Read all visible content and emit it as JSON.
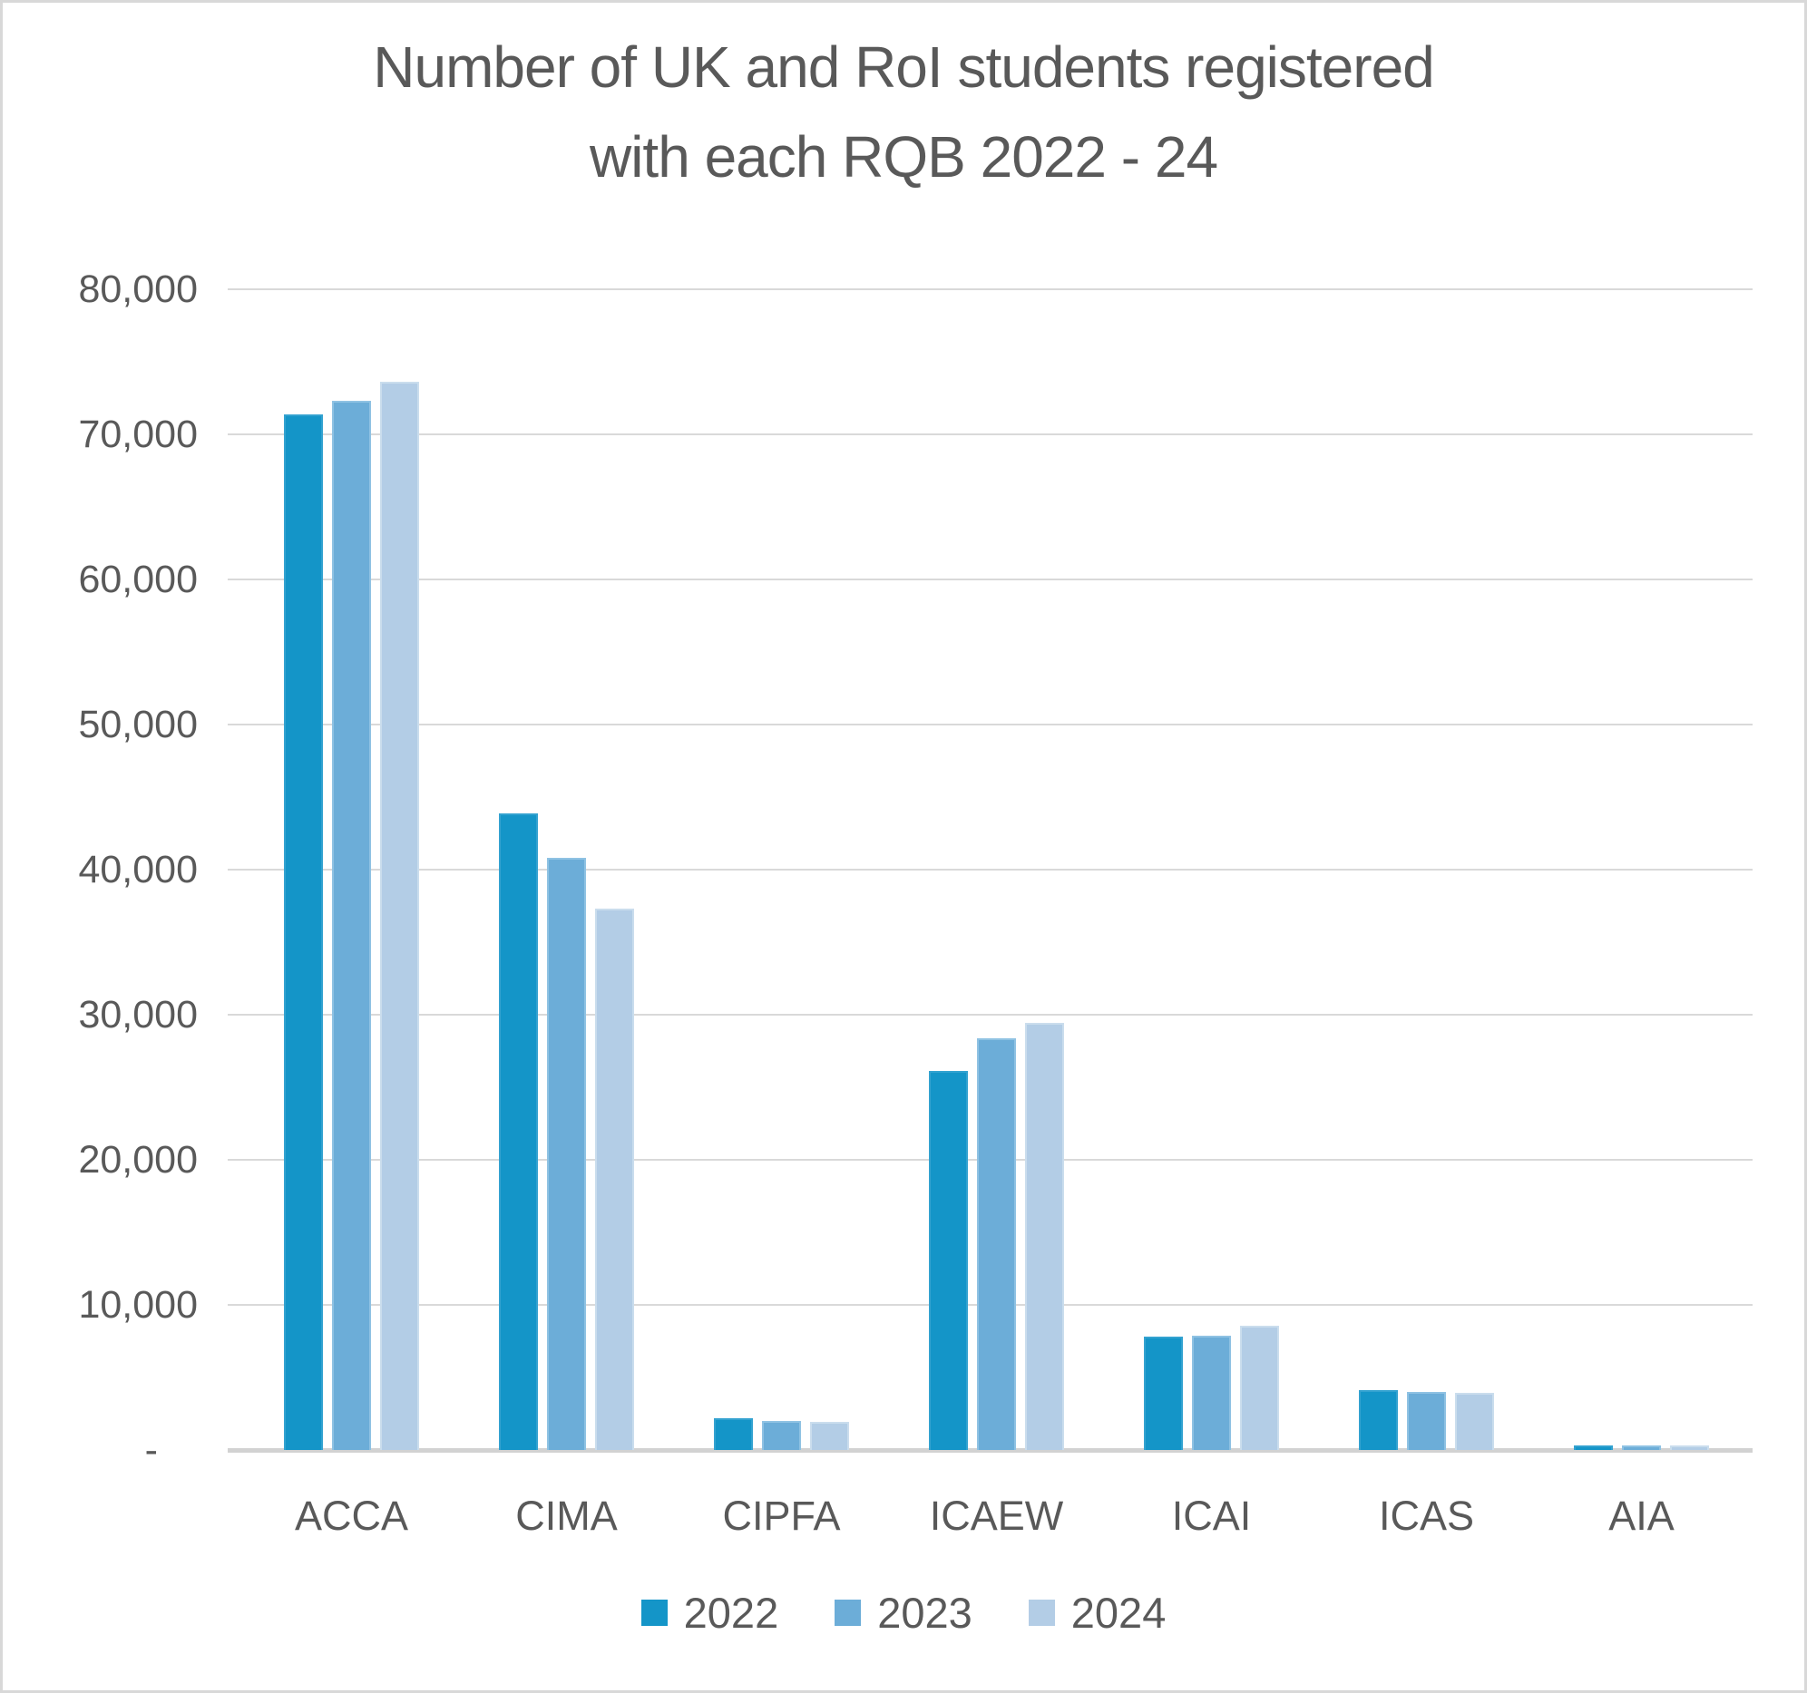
{
  "chart_data": {
    "type": "bar",
    "title": "Number of UK and RoI students registered with each RQB 2022 - 24",
    "title_line1": "Number of UK and RoI students registered",
    "title_line2": "with each RQB 2022 - 24",
    "xlabel": "",
    "ylabel": "",
    "ylim": [
      0,
      80000
    ],
    "ytick_step": 10000,
    "ytick_labels": [
      "80,000",
      "70,000",
      "60,000",
      "50,000",
      "40,000",
      "30,000",
      "20,000",
      "10,000",
      "-"
    ],
    "grid": true,
    "legend_position": "bottom",
    "categories": [
      "ACCA",
      "CIMA",
      "CIPFA",
      "ICAEW",
      "ICAI",
      "ICAS",
      "AIA"
    ],
    "series": [
      {
        "name": "2022",
        "color": "#1495c8",
        "border_color": "#33a2d0",
        "values": [
          71400,
          43900,
          2200,
          26100,
          7800,
          4150,
          310
        ]
      },
      {
        "name": "2023",
        "color": "#6cadd8",
        "border_color": "#8fc2e3",
        "values": [
          72300,
          40800,
          2000,
          28400,
          7900,
          4000,
          300
        ]
      },
      {
        "name": "2024",
        "color": "#b3cde6",
        "border_color": "#cadded",
        "values": [
          73600,
          37300,
          1950,
          29450,
          8550,
          3950,
          290
        ]
      }
    ],
    "colors": {
      "text": "#595959",
      "gridline": "#d9d9d9",
      "baseline": "#d2d2d2",
      "frame_border": "#d8d8d8",
      "background": "#ffffff"
    }
  }
}
